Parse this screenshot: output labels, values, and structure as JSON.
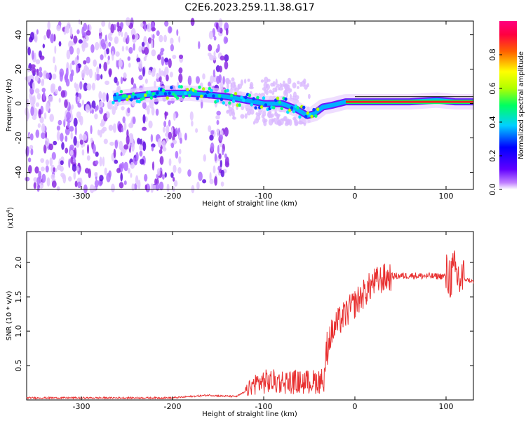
{
  "title": "C2E6.2023.259.11.38.G17",
  "chart_data": [
    {
      "type": "heatmap",
      "title": "C2E6.2023.259.11.38.G17",
      "xlabel": "Height of straight line (km)",
      "ylabel": "Frequency (Hz)",
      "xlim": [
        -360,
        130
      ],
      "ylim": [
        -50,
        48
      ],
      "x_ticks": [
        -300,
        -200,
        -100,
        0,
        100
      ],
      "y_ticks": [
        -40,
        -20,
        0,
        20,
        40
      ],
      "colorbar": {
        "label": "Normalized spectral amplitude",
        "range": [
          0.0,
          1.0
        ],
        "ticks": [
          0.0,
          0.2,
          0.4,
          0.6,
          0.8
        ],
        "colormap": [
          "#ffffff",
          "#c080ff",
          "#6000ff",
          "#0000ff",
          "#00d0ff",
          "#00ff60",
          "#b0ff00",
          "#ffff00",
          "#ff6000",
          "#ff0040",
          "#ff0080"
        ]
      },
      "noise_region_x": [
        -360,
        -140
      ],
      "gap_region_x": [
        -190,
        -160
      ],
      "signal_track": [
        {
          "x": -265,
          "y": 3
        },
        {
          "x": -230,
          "y": 5
        },
        {
          "x": -210,
          "y": 6
        },
        {
          "x": -180,
          "y": 6
        },
        {
          "x": -160,
          "y": 5
        },
        {
          "x": -140,
          "y": 4
        },
        {
          "x": -120,
          "y": 2
        },
        {
          "x": -100,
          "y": 0
        },
        {
          "x": -80,
          "y": 0
        },
        {
          "x": -65,
          "y": -3
        },
        {
          "x": -52,
          "y": -7
        },
        {
          "x": -45,
          "y": -6
        },
        {
          "x": -35,
          "y": -2
        },
        {
          "x": -25,
          "y": -1
        },
        {
          "x": -10,
          "y": 1
        },
        {
          "x": 0,
          "y": 1
        },
        {
          "x": 30,
          "y": 1
        },
        {
          "x": 60,
          "y": 1
        },
        {
          "x": 90,
          "y": 2
        },
        {
          "x": 110,
          "y": 1
        },
        {
          "x": 130,
          "y": 1
        }
      ]
    },
    {
      "type": "line",
      "xlabel": "Height of straight line (km)",
      "ylabel": "SNR (10 * v/v)",
      "y_multiplier": "(x10",
      "y_multiplier_exp": "4",
      "y_multiplier_close": ")",
      "xlim": [
        -360,
        130
      ],
      "ylim": [
        0,
        2.45
      ],
      "x_ticks": [
        -300,
        -200,
        -100,
        0,
        100
      ],
      "y_ticks": [
        0.5,
        1.0,
        1.5,
        2.0
      ],
      "y_tick_labels": [
        "0.5",
        "1.0",
        "1.5",
        "2.0"
      ],
      "color": "#e83030",
      "series": [
        {
          "x": [
            -360,
            -200,
            -180,
            -160,
            -150,
            -130,
            -120,
            -110,
            -100,
            -80,
            -60,
            -45,
            -35,
            -32,
            -28,
            -20,
            -10,
            0,
            10,
            20,
            30,
            40,
            60,
            80,
            100,
            105,
            110,
            115,
            120,
            130
          ],
          "y": [
            0.03,
            0.03,
            0.05,
            0.07,
            0.06,
            0.05,
            0.12,
            0.25,
            0.28,
            0.28,
            0.27,
            0.28,
            0.3,
            0.55,
            0.9,
            1.1,
            1.25,
            1.4,
            1.55,
            1.7,
            1.76,
            1.8,
            1.81,
            1.8,
            1.8,
            1.8,
            1.85,
            1.75,
            1.76,
            1.72
          ]
        }
      ]
    }
  ]
}
